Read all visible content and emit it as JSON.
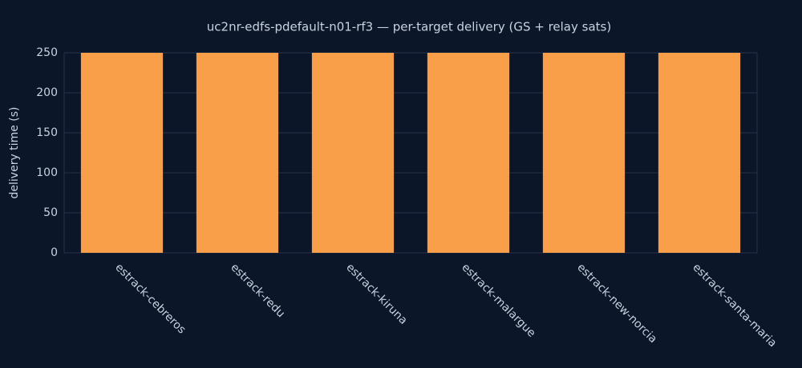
{
  "chart_data": {
    "type": "bar",
    "title": "uc2nr-edfs-pdefault-n01-rf3 — per-target delivery (GS + relay sats)",
    "y_label": "delivery time (s)",
    "categories": [
      "estrack-cebreros",
      "estrack-redu",
      "estrack-kiruna",
      "estrack-malargue",
      "estrack-new-norcia",
      "estrack-santa-maria"
    ],
    "values": [
      250,
      250,
      250,
      250,
      250,
      250
    ],
    "color": "#f99f4a",
    "ylim": [
      0,
      250
    ],
    "yticks": [
      0,
      50,
      100,
      150,
      200,
      250
    ],
    "grid": true
  }
}
